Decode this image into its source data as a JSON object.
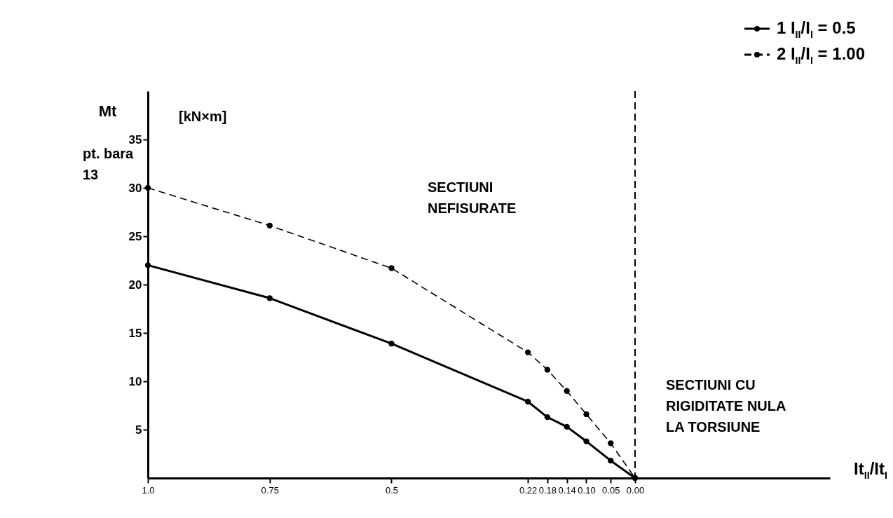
{
  "chart_data": {
    "type": "line",
    "ylabel": "Mt",
    "xlabel": "It$_{II}$/It$_{I}$",
    "x": [
      1.0,
      0.75,
      0.5,
      0.22,
      0.18,
      0.14,
      0.1,
      0.05,
      0.0
    ],
    "series": [
      {
        "name": "1 I$_{II}$/I$_{I}$ = 0.5",
        "color": "#000000",
        "line_style": "solid",
        "values": [
          22.0,
          18.6,
          13.9,
          7.9,
          6.3,
          5.3,
          3.8,
          1.8,
          0
        ]
      },
      {
        "name": "2 I$_{II}$/I$_{I}$ = 1.00",
        "color": "#000000",
        "line_style": "dashed",
        "values": [
          30.0,
          26.1,
          21.7,
          13.0,
          11.2,
          9.0,
          6.6,
          3.6,
          0
        ]
      }
    ],
    "xlim": [
      1.0,
      -0.4
    ],
    "ylim": [
      0,
      40
    ],
    "xticks": [
      {
        "value": 1.0,
        "label": "1.0"
      },
      0.75,
      0.5,
      0.22,
      0.18,
      0.14,
      {
        "value": 0.1,
        "label": "0.10"
      },
      0.05,
      {
        "value": 0.0,
        "label": "0.00"
      }
    ],
    "yticks": [
      5,
      10,
      15,
      20,
      25,
      30,
      35
    ],
    "ref_lines": [
      {
        "axis": "x",
        "value": 0.0,
        "line_style": "dashed",
        "color": "#000000"
      }
    ],
    "annotations": [
      "[kN×m]",
      "pt. bara\n13",
      "SECTIUNI\nNEFISURATE",
      "SECTIUNI CU\nRIGIDITATE NULA\nLA TORSIUNE"
    ],
    "marker": "circle",
    "grid": false,
    "legend": "top right"
  }
}
